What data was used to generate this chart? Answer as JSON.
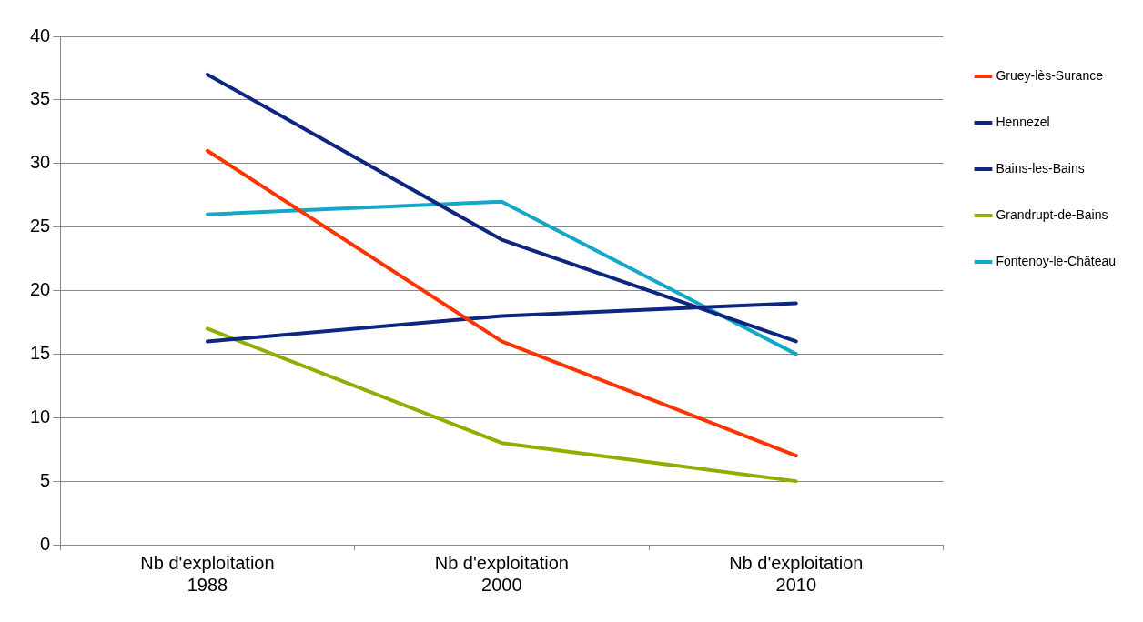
{
  "chart_data": {
    "type": "line",
    "categories": [
      "Nb d'exploitation 1988",
      "Nb d'exploitation 2000",
      "Nb d'exploitation 2010"
    ],
    "series": [
      {
        "name": "Gruey-lès-Surance",
        "color": "#ff3300",
        "values": [
          31,
          16,
          7
        ]
      },
      {
        "name": "Hennezel",
        "color": "#0d2680",
        "values": [
          37,
          24,
          16
        ]
      },
      {
        "name": "Bains-les-Bains",
        "color": "#0d2680",
        "values": [
          16,
          18,
          19
        ]
      },
      {
        "name": "Grandrupt-de-Bains",
        "color": "#8db000",
        "values": [
          17,
          8,
          5
        ]
      },
      {
        "name": "Fontenoy-le-Château",
        "color": "#14a8c8",
        "values": [
          26,
          27,
          15
        ]
      }
    ],
    "ylim": [
      0,
      40
    ],
    "yticks": [
      0,
      5,
      10,
      15,
      20,
      25,
      30,
      35,
      40
    ],
    "grid": "y",
    "legend": "right",
    "marker": "none",
    "line_style": "solid"
  }
}
